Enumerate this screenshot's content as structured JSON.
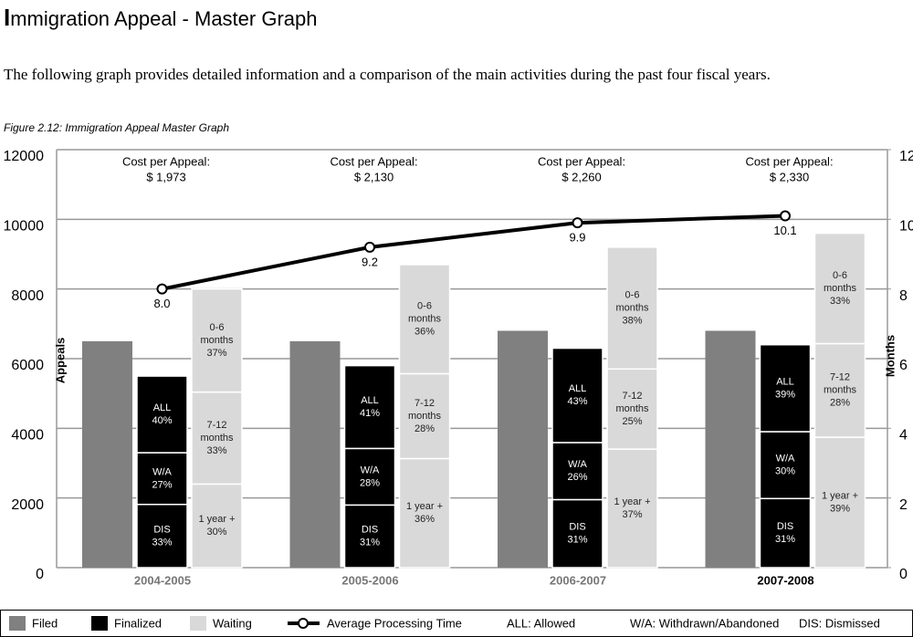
{
  "header": {
    "title": "Immigration Appeal - Master Graph",
    "intro": "The following graph provides detailed information and a comparison of the main activities during the past four fiscal years.",
    "caption": "Figure 2.12: Immigration Appeal Master Graph"
  },
  "chart_data": {
    "type": "bar",
    "categories": [
      "2004-2005",
      "2005-2006",
      "2006-2007",
      "2007-2008"
    ],
    "ylabel": "Appeals",
    "y2label": "Months",
    "ylim": [
      0,
      12000
    ],
    "yticks": [
      0,
      2000,
      4000,
      6000,
      8000,
      10000,
      12000
    ],
    "y2lim": [
      0,
      12
    ],
    "y2ticks": [
      0,
      2,
      4,
      6,
      8,
      10,
      12
    ],
    "grid": true,
    "cost_label": "Cost per Appeal:",
    "costs": [
      1973,
      2130,
      2260,
      2330
    ],
    "cost_labels": [
      "$ 1,973",
      "$ 2,130",
      "$ 2,260",
      "$ 2,330"
    ],
    "series": [
      {
        "name": "Filed",
        "color": "#808080",
        "values": [
          6500,
          6500,
          6800,
          6800
        ]
      },
      {
        "name": "Finalized",
        "color": "#000000",
        "values": [
          5500,
          5800,
          6300,
          6400
        ],
        "segments": [
          [
            {
              "label": [
                "DIS"
              ],
              "value": 33,
              "value_label": "33%"
            },
            {
              "label": [
                "W/A"
              ],
              "value": 27,
              "value_label": "27%"
            },
            {
              "label": [
                "ALL"
              ],
              "value": 40,
              "value_label": "40%"
            }
          ],
          [
            {
              "label": [
                "DIS"
              ],
              "value": 31,
              "value_label": "31%"
            },
            {
              "label": [
                "W/A"
              ],
              "value": 28,
              "value_label": "28%"
            },
            {
              "label": [
                "ALL"
              ],
              "value": 41,
              "value_label": "41%"
            }
          ],
          [
            {
              "label": [
                "DIS"
              ],
              "value": 31,
              "value_label": "31%"
            },
            {
              "label": [
                "W/A"
              ],
              "value": 26,
              "value_label": "26%"
            },
            {
              "label": [
                "ALL"
              ],
              "value": 43,
              "value_label": "43%"
            }
          ],
          [
            {
              "label": [
                "DIS"
              ],
              "value": 31,
              "value_label": "31%"
            },
            {
              "label": [
                "W/A"
              ],
              "value": 30,
              "value_label": "30%"
            },
            {
              "label": [
                "ALL"
              ],
              "value": 39,
              "value_label": "39%"
            }
          ]
        ]
      },
      {
        "name": "Waiting",
        "color": "#d9d9d9",
        "values": [
          8000,
          8700,
          9200,
          9600
        ],
        "segments": [
          [
            {
              "label": [
                "1 year +"
              ],
              "value": 30,
              "value_label": "30%"
            },
            {
              "label": [
                "7-12",
                "months"
              ],
              "value": 33,
              "value_label": "33%"
            },
            {
              "label": [
                "0-6",
                "months"
              ],
              "value": 37,
              "value_label": "37%"
            }
          ],
          [
            {
              "label": [
                "1 year +"
              ],
              "value": 36,
              "value_label": "36%"
            },
            {
              "label": [
                "7-12",
                "months"
              ],
              "value": 28,
              "value_label": "28%"
            },
            {
              "label": [
                "0-6",
                "months"
              ],
              "value": 36,
              "value_label": "36%"
            }
          ],
          [
            {
              "label": [
                "1 year +"
              ],
              "value": 37,
              "value_label": "37%"
            },
            {
              "label": [
                "7-12",
                "months"
              ],
              "value": 25,
              "value_label": "25%"
            },
            {
              "label": [
                "0-6",
                "months"
              ],
              "value": 38,
              "value_label": "38%"
            }
          ],
          [
            {
              "label": [
                "1 year +"
              ],
              "value": 39,
              "value_label": "39%"
            },
            {
              "label": [
                "7-12",
                "months"
              ],
              "value": 28,
              "value_label": "28%"
            },
            {
              "label": [
                "0-6",
                "months"
              ],
              "value": 33,
              "value_label": "33%"
            }
          ]
        ]
      },
      {
        "name": "Average Processing Time",
        "type": "line",
        "axis": "y2",
        "color": "#000000",
        "values": [
          8.0,
          9.2,
          9.9,
          10.1
        ],
        "value_labels": [
          "8.0",
          "9.2",
          "9.9",
          "10.1"
        ]
      }
    ],
    "legend_notes": [
      "ALL: Allowed",
      "W/A: Withdrawn/Abandoned",
      "DIS: Dismissed"
    ]
  }
}
